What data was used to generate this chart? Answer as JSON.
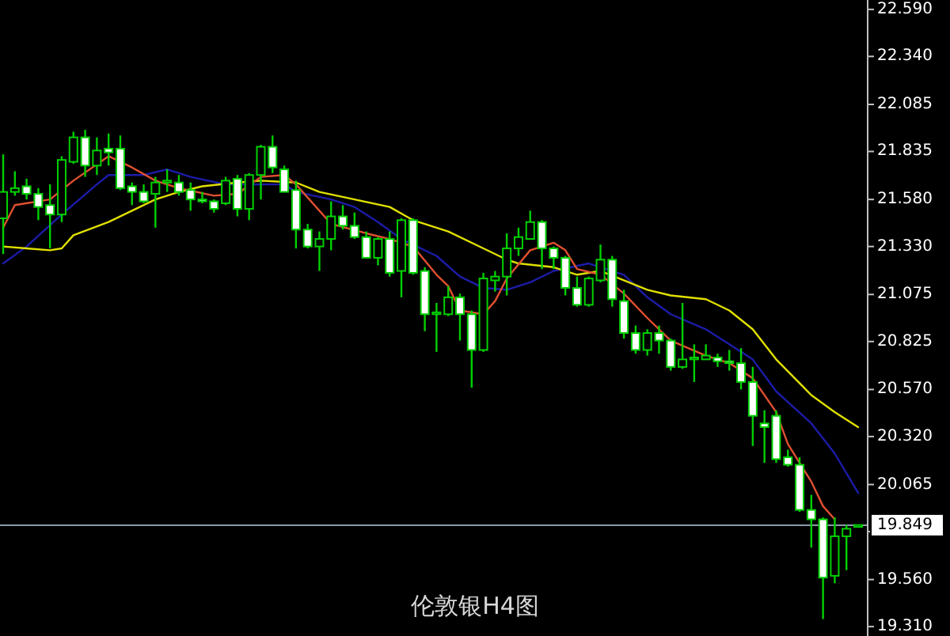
{
  "chart_data": {
    "type": "candlestick",
    "title": "伦敦银H4图",
    "categories": [
      null,
      null,
      null,
      null,
      null,
      null,
      null,
      null,
      null,
      null,
      null,
      null,
      null,
      null,
      null,
      null,
      null,
      null,
      null,
      null,
      null,
      null,
      null,
      null,
      null,
      null,
      null,
      null,
      null,
      null,
      null,
      null,
      null,
      null,
      null,
      null,
      null,
      null,
      null,
      null,
      null,
      null,
      null,
      null,
      null,
      null,
      null,
      null,
      null,
      null,
      null,
      null,
      null,
      null,
      null,
      null,
      null,
      null,
      null,
      null,
      null,
      null,
      null,
      null,
      null,
      null,
      null,
      null,
      null,
      null,
      null,
      null,
      null,
      null
    ],
    "series": [
      {
        "type": "line",
        "color": "#1c1ca8",
        "values": [
          21.24,
          null,
          21.33,
          null,
          null,
          21.5,
          null,
          null,
          21.66,
          21.71,
          null,
          null,
          21.71,
          null,
          21.74,
          null,
          21.7,
          null,
          null,
          21.66,
          null,
          null,
          21.66,
          null,
          21.66,
          21.62,
          null,
          null,
          21.58,
          null,
          21.54,
          null,
          21.46,
          null,
          21.37,
          null,
          null,
          21.28,
          null,
          21.17,
          null,
          21.11,
          null,
          21.1,
          null,
          21.14,
          null,
          21.2,
          null,
          null,
          21.24,
          null,
          null,
          21.18,
          null,
          21.06,
          null,
          20.97,
          null,
          null,
          20.89,
          null,
          20.81,
          null,
          20.73,
          null,
          20.56,
          null,
          null,
          20.39,
          null,
          20.23,
          null,
          20.02
        ]
      },
      {
        "type": "line",
        "color": "#e0e000",
        "values": [
          21.33,
          null,
          21.32,
          null,
          21.31,
          21.32,
          21.39,
          null,
          null,
          21.46,
          null,
          21.52,
          null,
          21.58,
          null,
          21.62,
          null,
          21.65,
          null,
          null,
          21.67,
          null,
          21.68,
          null,
          null,
          21.67,
          null,
          21.62,
          null,
          null,
          21.58,
          null,
          null,
          21.54,
          null,
          21.47,
          null,
          null,
          21.41,
          null,
          null,
          21.32,
          null,
          21.26,
          21.24,
          null,
          null,
          21.22,
          null,
          21.18,
          null,
          21.2,
          null,
          21.15,
          null,
          21.1,
          null,
          21.07,
          null,
          null,
          21.05,
          null,
          20.99,
          null,
          20.89,
          null,
          20.73,
          null,
          null,
          20.54,
          null,
          20.45,
          null,
          20.37
        ]
      },
      {
        "type": "line",
        "color": "#e05030",
        "values": [
          21.43,
          21.55,
          null,
          null,
          21.58,
          null,
          21.68,
          null,
          null,
          21.81,
          null,
          21.75,
          null,
          21.68,
          null,
          21.64,
          null,
          null,
          21.6,
          null,
          21.61,
          null,
          21.7,
          null,
          21.71,
          21.66,
          null,
          21.52,
          21.45,
          null,
          null,
          21.4,
          null,
          21.37,
          null,
          21.33,
          null,
          21.18,
          21.12,
          20.99,
          null,
          20.97,
          21.04,
          21.16,
          null,
          21.31,
          null,
          21.35,
          21.31,
          21.21,
          null,
          21.18,
          null,
          21.08,
          null,
          20.95,
          null,
          20.83,
          null,
          null,
          20.75,
          null,
          20.71,
          null,
          20.63,
          null,
          20.45,
          20.28,
          null,
          20.08,
          19.95,
          19.88,
          null,
          null
        ]
      },
      {
        "color": "#00d000",
        "ohlc": [
          [
            21.48,
            21.82,
            21.29,
            21.62
          ],
          [
            21.62,
            21.73,
            21.6,
            21.64
          ],
          [
            21.65,
            21.69,
            21.58,
            21.61
          ],
          [
            21.61,
            21.64,
            21.47,
            21.54
          ],
          [
            21.55,
            21.66,
            21.32,
            21.5
          ],
          [
            21.5,
            21.81,
            21.46,
            21.79
          ],
          [
            21.78,
            21.94,
            21.77,
            21.91
          ],
          [
            21.91,
            21.95,
            21.7,
            21.76
          ],
          [
            21.76,
            21.91,
            21.71,
            21.84
          ],
          [
            21.85,
            21.93,
            21.76,
            21.83
          ],
          [
            21.85,
            21.92,
            21.63,
            21.64
          ],
          [
            21.65,
            21.67,
            21.55,
            21.62
          ],
          [
            21.62,
            21.66,
            21.56,
            21.57
          ],
          [
            21.61,
            21.7,
            21.43,
            21.67
          ],
          [
            21.67,
            21.74,
            21.62,
            21.68
          ],
          [
            21.67,
            21.71,
            21.6,
            21.62
          ],
          [
            21.63,
            21.67,
            21.52,
            21.58
          ],
          [
            21.58,
            21.62,
            21.56,
            21.57
          ],
          [
            21.57,
            21.58,
            21.51,
            21.53
          ],
          [
            21.56,
            21.7,
            21.55,
            21.68
          ],
          [
            21.69,
            21.71,
            21.49,
            21.53
          ],
          [
            21.53,
            21.72,
            21.47,
            21.71
          ],
          [
            21.71,
            21.87,
            21.58,
            21.86
          ],
          [
            21.86,
            21.92,
            21.72,
            21.75
          ],
          [
            21.74,
            21.76,
            21.62,
            21.62
          ],
          [
            21.63,
            21.68,
            21.32,
            21.42
          ],
          [
            21.42,
            21.45,
            21.32,
            21.33
          ],
          [
            21.33,
            21.41,
            21.2,
            21.37
          ],
          [
            21.37,
            21.57,
            21.31,
            21.49
          ],
          [
            21.49,
            21.55,
            21.42,
            21.44
          ],
          [
            21.44,
            21.51,
            21.37,
            21.38
          ],
          [
            21.38,
            21.41,
            21.27,
            21.27
          ],
          [
            21.27,
            21.38,
            21.23,
            21.37
          ],
          [
            21.37,
            21.41,
            21.17,
            21.19
          ],
          [
            21.2,
            21.48,
            21.06,
            21.47
          ],
          [
            21.47,
            21.48,
            21.18,
            21.19
          ],
          [
            21.2,
            21.22,
            20.88,
            20.97
          ],
          [
            20.97,
            21.03,
            20.77,
            20.98
          ],
          [
            20.97,
            21.12,
            20.96,
            21.06
          ],
          [
            21.06,
            21.08,
            20.83,
            20.97
          ],
          [
            20.97,
            20.99,
            20.58,
            20.78
          ],
          [
            20.78,
            21.19,
            20.77,
            21.16
          ],
          [
            21.15,
            21.2,
            21.09,
            21.17
          ],
          [
            21.17,
            21.4,
            21.07,
            21.32
          ],
          [
            21.32,
            21.43,
            21.28,
            21.38
          ],
          [
            21.37,
            21.52,
            21.37,
            21.46
          ],
          [
            21.46,
            21.47,
            21.21,
            21.32
          ],
          [
            21.32,
            21.33,
            21.21,
            21.27
          ],
          [
            21.27,
            21.28,
            21.07,
            21.11
          ],
          [
            21.11,
            21.17,
            21.01,
            21.02
          ],
          [
            21.02,
            21.17,
            21.01,
            21.16
          ],
          [
            21.15,
            21.34,
            21.14,
            21.26
          ],
          [
            21.26,
            21.28,
            21.01,
            21.05
          ],
          [
            21.04,
            21.1,
            20.84,
            20.87
          ],
          [
            20.87,
            20.91,
            20.76,
            20.78
          ],
          [
            20.78,
            20.89,
            20.75,
            20.87
          ],
          [
            20.87,
            20.91,
            20.76,
            20.83
          ],
          [
            20.83,
            20.84,
            20.67,
            20.69
          ],
          [
            20.69,
            21.03,
            20.68,
            20.73
          ],
          [
            20.73,
            20.81,
            20.61,
            20.74
          ],
          [
            20.73,
            20.81,
            20.73,
            20.75
          ],
          [
            20.74,
            20.76,
            20.69,
            20.72
          ],
          [
            20.72,
            20.78,
            20.67,
            20.71
          ],
          [
            20.71,
            20.79,
            20.57,
            20.61
          ],
          [
            20.61,
            20.69,
            20.27,
            20.43
          ],
          [
            20.39,
            20.46,
            20.18,
            20.37
          ],
          [
            20.43,
            20.46,
            20.18,
            20.2
          ],
          [
            20.21,
            20.25,
            20.16,
            20.17
          ],
          [
            20.17,
            20.21,
            19.92,
            19.93
          ],
          [
            19.93,
            20.01,
            19.73,
            19.88
          ],
          [
            19.88,
            19.89,
            19.35,
            19.57
          ],
          [
            19.58,
            19.89,
            19.54,
            19.79
          ],
          [
            19.79,
            19.85,
            19.61,
            19.83
          ],
          [
            19.84,
            19.85,
            19.84,
            19.85
          ]
        ]
      }
    ],
    "ylim": [
      19.26,
      22.64
    ],
    "yticks": [
      {
        "value": 22.59,
        "label": "22.590"
      },
      {
        "value": 22.34,
        "label": "22.340"
      },
      {
        "value": 22.085,
        "label": "22.085"
      },
      {
        "value": 21.835,
        "label": "21.835"
      },
      {
        "value": 21.58,
        "label": "21.580"
      },
      {
        "value": 21.33,
        "label": "21.330"
      },
      {
        "value": 21.075,
        "label": "21.075"
      },
      {
        "value": 20.825,
        "label": "20.825"
      },
      {
        "value": 20.57,
        "label": "20.570"
      },
      {
        "value": 20.32,
        "label": "20.320"
      },
      {
        "value": 20.065,
        "label": "20.065"
      },
      {
        "value": 19.815,
        "label": null
      },
      {
        "value": 19.56,
        "label": "19.560"
      },
      {
        "value": 19.31,
        "label": "19.310"
      }
    ],
    "ref_lines": [
      {
        "axis": "y",
        "value": 19.849,
        "label": "19.849",
        "color": "#8c9bab"
      }
    ],
    "grid": false
  }
}
